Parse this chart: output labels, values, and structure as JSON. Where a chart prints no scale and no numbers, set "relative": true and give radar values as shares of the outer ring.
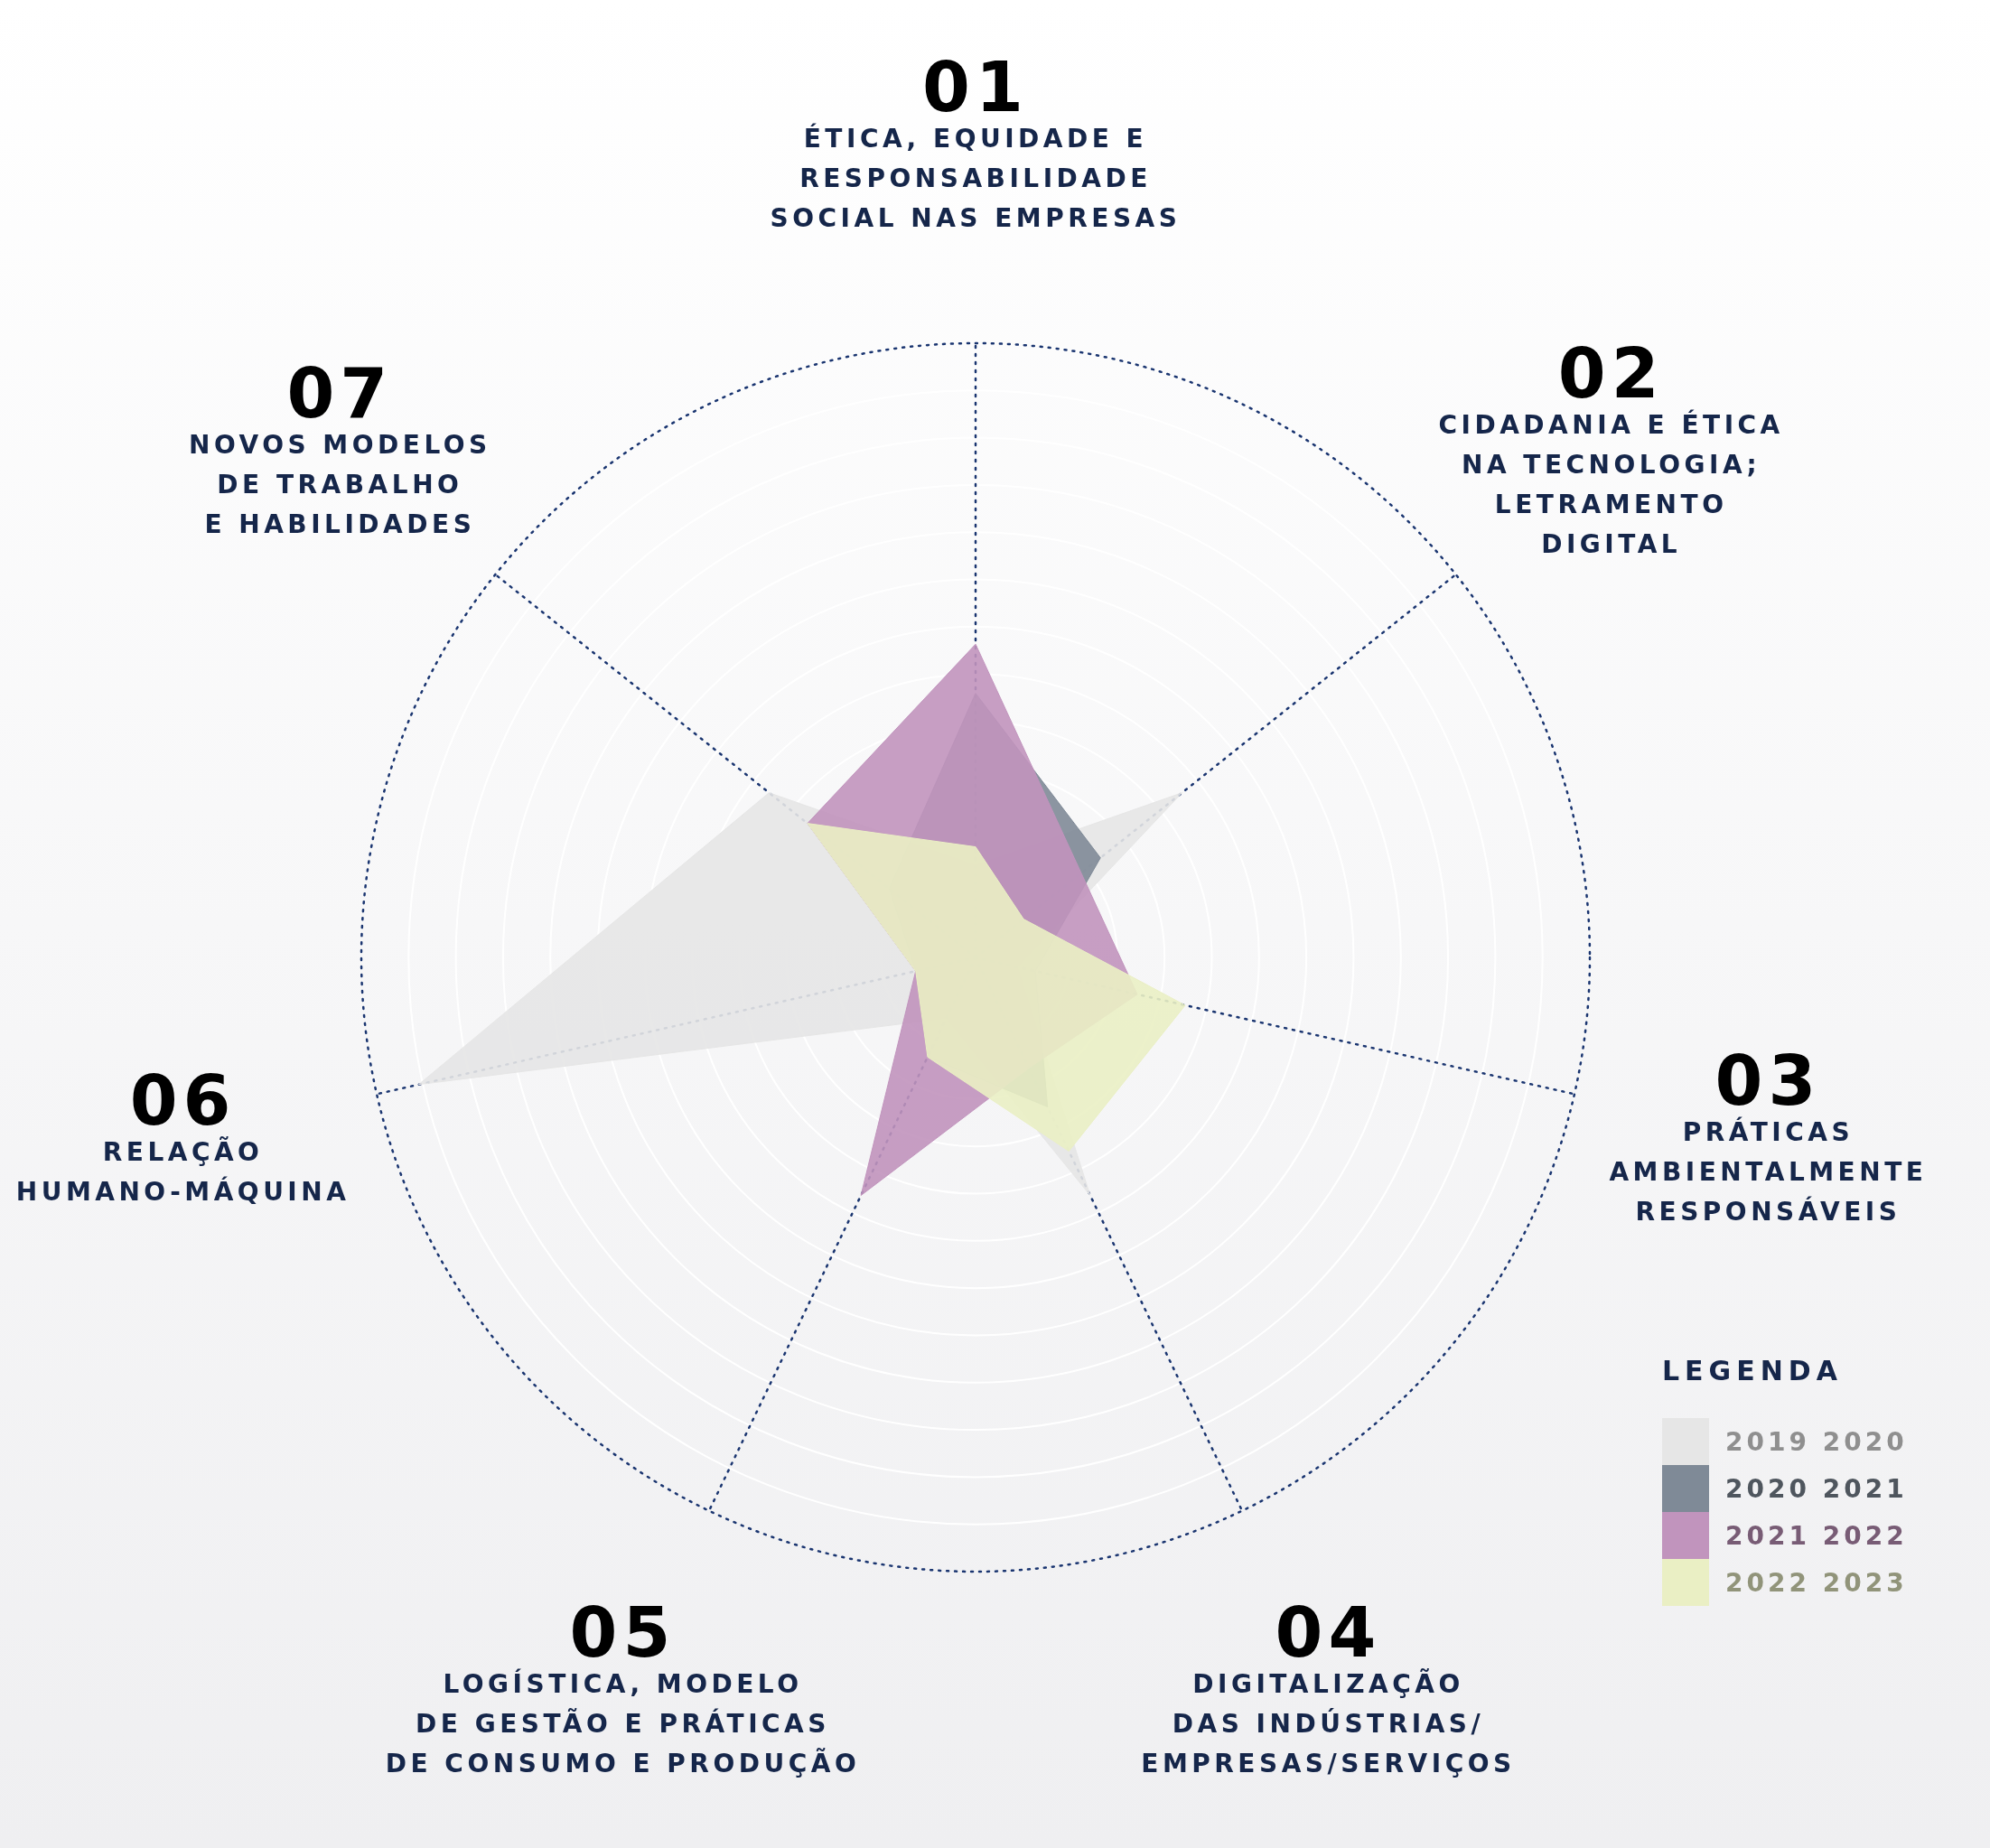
{
  "chart_data": {
    "type": "radar",
    "relative": true,
    "grid": true,
    "legend": "bottom right",
    "legend_title": "LEGENDA",
    "categories": [
      "01\nÉTICA, EQUIDADE E\nRESPONSABILIDADE\nSOCIAL NAS EMPRESAS",
      "02\nCIDADANIA E ÉTICA\nNA TECNOLOGIA;\nLETRAMENTO\nDIGITAL",
      "03\nPRÁTICAS\nAMBIENTALMENTE\nRESPONSÁVEIS",
      "04\nDIGITALIZAÇÃO\nDAS INDÚSTRIAS/\nEMPRESAS/SERVIÇOS",
      "05\nLOGÍSTICA, MODELO\nDE GESTÃO E PRÁTICAS\nDE CONSUMO E PRODUÇÃO",
      "06\nRELAÇÃO\nHUMANO-MÁQUINA",
      "07\nNOVOS MODELOS\nDE TRABALHO\nE HABILIDADES"
    ],
    "series": [
      {
        "name": "2019 2020",
        "color": "#e6e6e6",
        "values": [
          0.15,
          0.43,
          0.07,
          0.43,
          0.11,
          0.93,
          0.43
        ]
      },
      {
        "name": "2020 2021",
        "color": "#7f8a97",
        "values": [
          0.43,
          0.26,
          0.1,
          0.27,
          0.18,
          0.1,
          0.18
        ]
      },
      {
        "name": "2021 2022",
        "color": "#c194bd",
        "values": [
          0.51,
          0.22,
          0.27,
          0.2,
          0.43,
          0.1,
          0.35
        ]
      },
      {
        "name": "2022 2023",
        "color": "#eaefc4",
        "values": [
          0.18,
          0.1,
          0.35,
          0.35,
          0.18,
          0.1,
          0.35
        ]
      }
    ]
  }
}
